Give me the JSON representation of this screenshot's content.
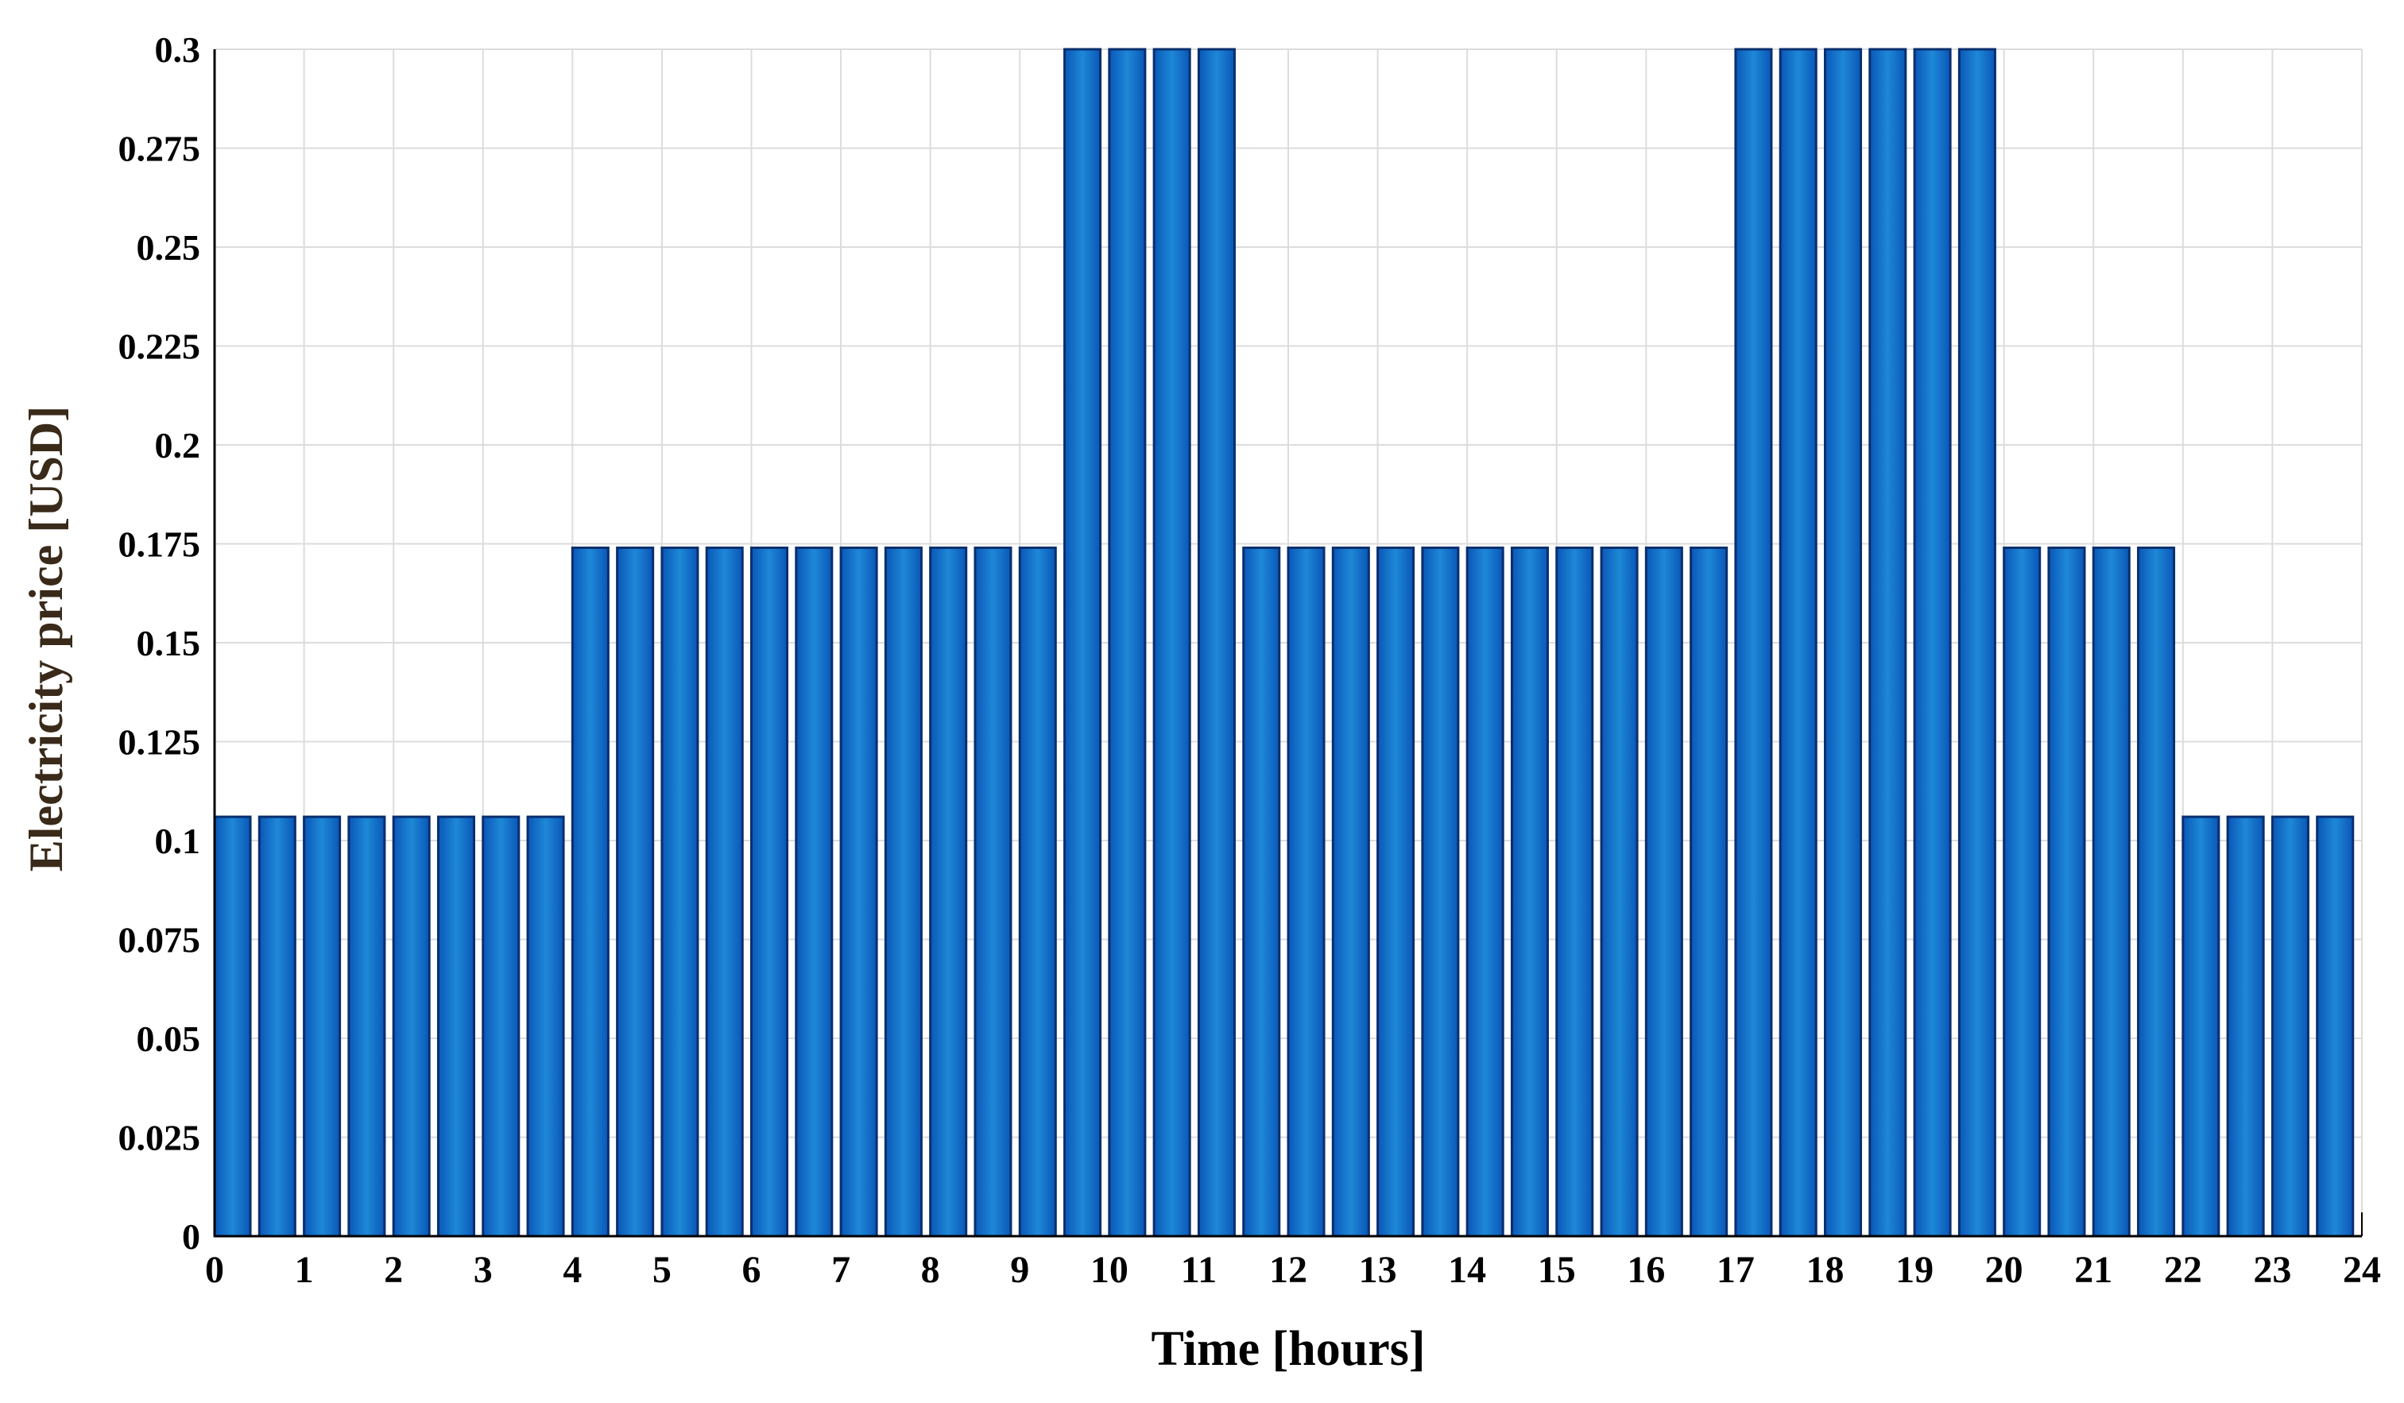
{
  "chart_data": {
    "type": "bar",
    "title": "",
    "xlabel": "Time [hours]",
    "ylabel": "Electricity price [USD]",
    "xlim": [
      0,
      24
    ],
    "ylim": [
      0,
      0.3
    ],
    "x_ticks": [
      0,
      1,
      2,
      3,
      4,
      5,
      6,
      7,
      8,
      9,
      10,
      11,
      12,
      13,
      14,
      15,
      16,
      17,
      18,
      19,
      20,
      21,
      22,
      23,
      24
    ],
    "y_ticks": [
      0,
      0.025,
      0.05,
      0.075,
      0.1,
      0.125,
      0.15,
      0.175,
      0.2,
      0.225,
      0.25,
      0.275,
      0.3
    ],
    "x_tick_labels": [
      "0",
      "1",
      "2",
      "3",
      "4",
      "5",
      "6",
      "7",
      "8",
      "9",
      "10",
      "11",
      "12",
      "13",
      "14",
      "15",
      "16",
      "17",
      "18",
      "19",
      "20",
      "21",
      "22",
      "23",
      "24"
    ],
    "y_tick_labels": [
      "0",
      "0.025",
      "0.05",
      "0.075",
      "0.1",
      "0.125",
      "0.15",
      "0.175",
      "0.2",
      "0.225",
      "0.25",
      "0.275",
      "0.3"
    ],
    "grid": true,
    "bar_width_hours": 0.4,
    "x": [
      0,
      0.5,
      1,
      1.5,
      2,
      2.5,
      3,
      3.5,
      4,
      4.5,
      5,
      5.5,
      6,
      6.5,
      7,
      7.5,
      8,
      8.5,
      9,
      9.5,
      10,
      10.5,
      11,
      11.5,
      12,
      12.5,
      13,
      13.5,
      14,
      14.5,
      15,
      15.5,
      16,
      16.5,
      17,
      17.5,
      18,
      18.5,
      19,
      19.5,
      20,
      20.5,
      21,
      21.5,
      22,
      22.5,
      23,
      23.5
    ],
    "values": [
      0.106,
      0.106,
      0.106,
      0.106,
      0.106,
      0.106,
      0.106,
      0.106,
      0.174,
      0.174,
      0.174,
      0.174,
      0.174,
      0.174,
      0.174,
      0.174,
      0.174,
      0.174,
      0.174,
      0.3,
      0.3,
      0.3,
      0.3,
      0.174,
      0.174,
      0.174,
      0.174,
      0.174,
      0.174,
      0.174,
      0.174,
      0.174,
      0.174,
      0.174,
      0.3,
      0.3,
      0.3,
      0.3,
      0.3,
      0.3,
      0.174,
      0.174,
      0.174,
      0.174,
      0.106,
      0.106,
      0.106,
      0.106
    ],
    "colors": {
      "bar_edge": "#0a2f6e",
      "bar_center": "#1e88d6",
      "bar_side": "#0a57b8",
      "grid": "#dcdcdc",
      "axis": "#000000",
      "ylabel_text": "#3a2a1a",
      "tick_text": "#000000"
    }
  }
}
